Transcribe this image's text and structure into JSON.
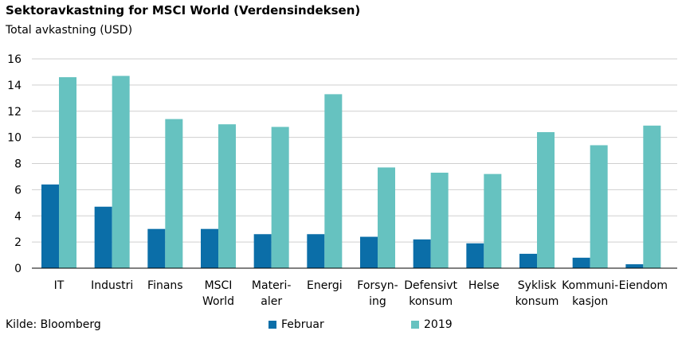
{
  "title": "Sektoravkastning for MSCI World (Verdensindeksen)",
  "source": "Kilde: Bloomberg",
  "colors": {
    "februar": "#0b6ea8",
    "y2019": "#66c2c0",
    "grid": "#cfcfcf",
    "axis": "#000000"
  },
  "chart_data": {
    "type": "bar",
    "title": "Sektoravkastning for MSCI World (Verdensindeksen)",
    "ylabel": "Total avkastning (USD)",
    "ylim": [
      0,
      16
    ],
    "yticks": [
      0,
      2,
      4,
      6,
      8,
      10,
      12,
      14,
      16
    ],
    "grid": true,
    "legend_position": "bottom",
    "categories": [
      [
        "IT"
      ],
      [
        "Industri"
      ],
      [
        "Finans"
      ],
      [
        "MSCI",
        "World"
      ],
      [
        "Materi-",
        "aler"
      ],
      [
        "Energi"
      ],
      [
        "Forsyn-",
        "ing"
      ],
      [
        "Defensivt",
        "konsum"
      ],
      [
        "Helse"
      ],
      [
        "Syklisk",
        "konsum"
      ],
      [
        "Kommuni-",
        "kasjon"
      ],
      [
        "Eiendom"
      ]
    ],
    "series": [
      {
        "name": "Februar",
        "values": [
          6.4,
          4.7,
          3.0,
          3.0,
          2.6,
          2.6,
          2.4,
          2.2,
          1.9,
          1.1,
          0.8,
          0.3
        ]
      },
      {
        "name": "2019",
        "values": [
          14.6,
          14.7,
          11.4,
          11.0,
          10.8,
          13.3,
          7.7,
          7.3,
          7.2,
          10.4,
          9.4,
          10.9
        ]
      }
    ]
  }
}
